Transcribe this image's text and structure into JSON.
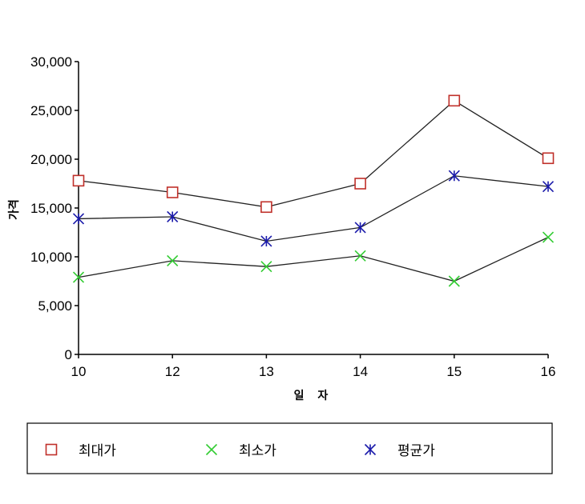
{
  "chart_data": {
    "type": "line",
    "categories": [
      "10",
      "12",
      "13",
      "14",
      "15",
      "16"
    ],
    "xlabel": "일 자",
    "ylabel": "가격",
    "ylim": [
      0,
      30000
    ],
    "yticks": [
      0,
      5000,
      10000,
      15000,
      20000,
      25000,
      30000
    ],
    "ytick_labels": [
      "0",
      "5,000",
      "10,000",
      "15,000",
      "20,000",
      "25,000",
      "30,000"
    ],
    "grid": false,
    "legend_position": "bottom",
    "series": [
      {
        "name": "최대가",
        "marker": "square",
        "color": "#c0302a",
        "values": [
          17800,
          16600,
          15100,
          17500,
          26000,
          20100
        ]
      },
      {
        "name": "최소가",
        "marker": "x",
        "color": "#33cc33",
        "values": [
          7900,
          9600,
          9000,
          10100,
          7500,
          12000
        ]
      },
      {
        "name": "평균가",
        "marker": "asterisk",
        "color": "#1a1aaa",
        "values": [
          13900,
          14100,
          11600,
          13000,
          18300,
          17200
        ]
      }
    ]
  }
}
